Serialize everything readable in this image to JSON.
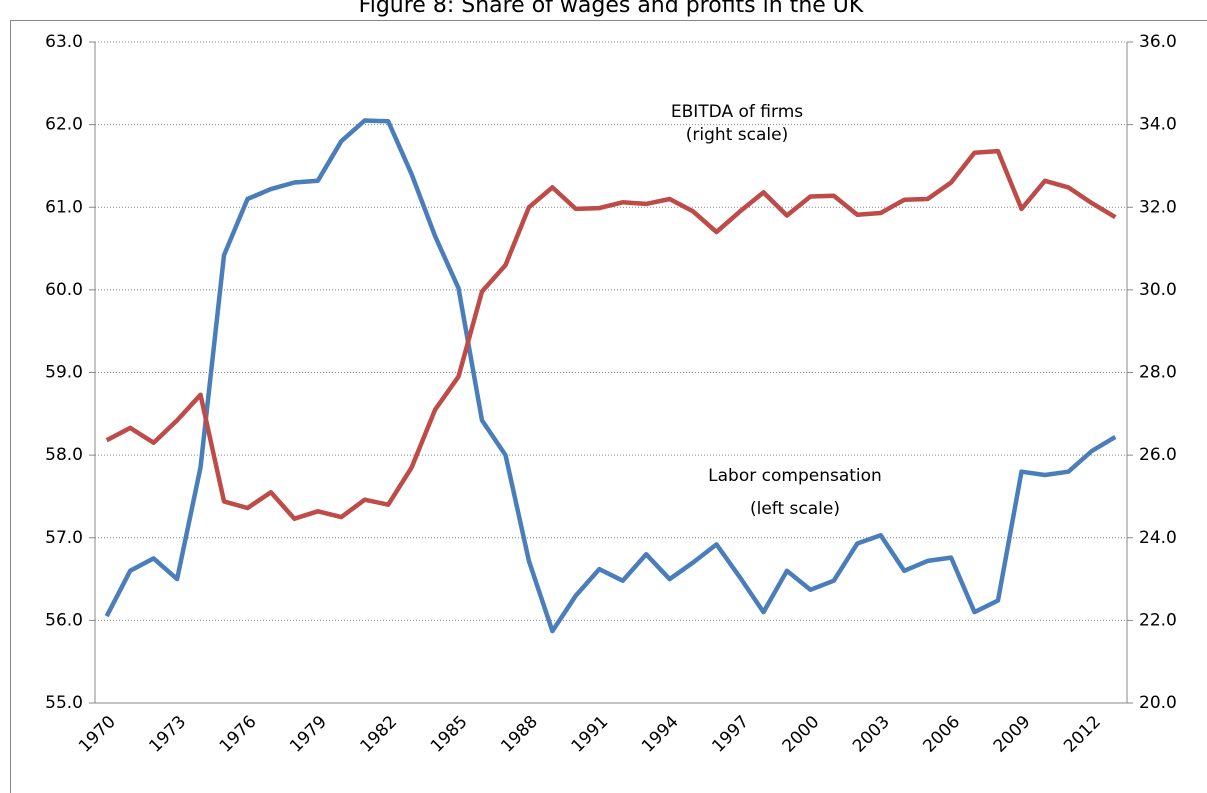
{
  "chart_data": {
    "type": "line",
    "title": "Figure 8: Share of wages and profits in the UK",
    "categories": [
      "1970",
      null,
      null,
      "1973",
      null,
      null,
      "1976",
      null,
      null,
      "1979",
      null,
      null,
      "1982",
      null,
      null,
      "1985",
      null,
      null,
      "1988",
      null,
      null,
      "1991",
      null,
      null,
      "1994",
      null,
      null,
      "1997",
      null,
      null,
      "2000",
      null,
      null,
      "2003",
      null,
      null,
      "2006",
      null,
      null,
      "2009",
      null,
      null,
      "2012",
      null
    ],
    "series": [
      {
        "name": "Labor compensation",
        "color": "#4a7ebb",
        "axis": "y",
        "values": [
          56.05,
          56.6,
          56.75,
          56.5,
          57.85,
          60.42,
          61.1,
          61.22,
          61.3,
          61.32,
          61.8,
          62.05,
          62.04,
          61.4,
          60.65,
          60.02,
          58.42,
          58.0,
          56.72,
          55.87,
          56.3,
          56.62,
          56.48,
          56.8,
          56.5,
          56.7,
          56.92,
          56.52,
          56.1,
          56.6,
          56.37,
          56.48,
          56.93,
          57.03,
          56.6,
          56.72,
          56.76,
          56.1,
          56.24,
          57.8,
          57.76,
          57.8,
          58.05,
          58.22
        ]
      },
      {
        "name": "EBITDA of firms",
        "color": "#be4b48",
        "axis": "y2",
        "values": [
          26.36,
          26.66,
          26.3,
          26.84,
          27.46,
          24.88,
          24.72,
          25.1,
          24.46,
          24.64,
          24.5,
          24.92,
          24.8,
          25.7,
          27.1,
          27.9,
          29.96,
          30.6,
          32.0,
          32.48,
          31.96,
          31.98,
          32.12,
          32.08,
          32.2,
          31.9,
          31.4,
          31.9,
          32.36,
          31.8,
          32.26,
          32.28,
          31.82,
          31.86,
          32.18,
          32.2,
          32.6,
          33.32,
          33.36,
          31.96,
          32.64,
          32.48,
          32.1,
          31.76
        ]
      }
    ],
    "ylim": [
      55,
      63
    ],
    "yticks": [
      {
        "value": 55,
        "label": "55.0"
      },
      {
        "value": 56,
        "label": "56.0"
      },
      {
        "value": 57,
        "label": "57.0"
      },
      {
        "value": 58,
        "label": "58.0"
      },
      {
        "value": 59,
        "label": "59.0"
      },
      {
        "value": 60,
        "label": "60.0"
      },
      {
        "value": 61,
        "label": "61.0"
      },
      {
        "value": 62,
        "label": "62.0"
      },
      {
        "value": 63,
        "label": "63.0"
      }
    ],
    "y2lim": [
      20,
      36
    ],
    "y2ticks": [
      {
        "value": 20,
        "label": "20.0"
      },
      {
        "value": 22,
        "label": "22.0"
      },
      {
        "value": 24,
        "label": "24.0"
      },
      {
        "value": 26,
        "label": "26.0"
      },
      {
        "value": 28,
        "label": "28.0"
      },
      {
        "value": 30,
        "label": "30.0"
      },
      {
        "value": 32,
        "label": "32.0"
      },
      {
        "value": 34,
        "label": "34.0"
      },
      {
        "value": 36,
        "label": "36.0"
      }
    ],
    "grid": true,
    "annotations": [
      "EBITDA of firms",
      "(right scale)",
      "Labor compensation",
      "(left scale)"
    ]
  }
}
